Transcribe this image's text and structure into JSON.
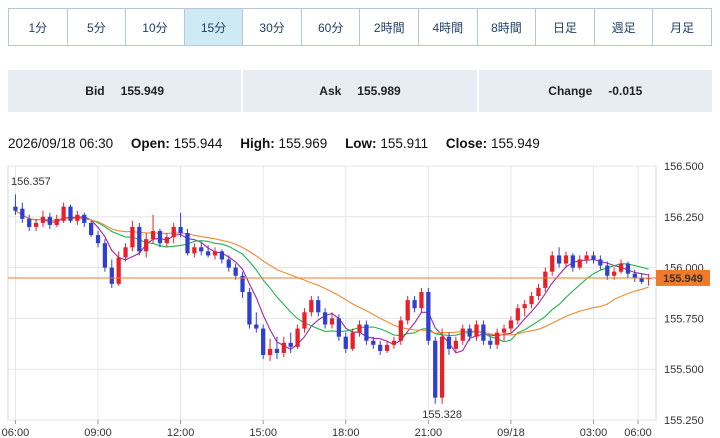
{
  "timeframes": {
    "items": [
      "1分",
      "5分",
      "10分",
      "15分",
      "30分",
      "60分",
      "2時間",
      "4時間",
      "8時間",
      "日足",
      "週足",
      "月足"
    ],
    "active_index": 3
  },
  "quote": {
    "bid_label": "Bid",
    "bid_value": "155.949",
    "ask_label": "Ask",
    "ask_value": "155.989",
    "change_label": "Change",
    "change_value": "-0.015"
  },
  "ohlc": {
    "datetime": "2026/09/18 06:30",
    "open_label": "Open:",
    "open": "155.944",
    "high_label": "High:",
    "high": "155.969",
    "low_label": "Low:",
    "low": "155.911",
    "close_label": "Close:",
    "close": "155.949"
  },
  "colors": {
    "up": "#e8202a",
    "down": "#2f3fd0",
    "ma_short": "#9b27b0",
    "ma_mid": "#22b24c",
    "ma_long": "#f08a30",
    "price_tag": "#f07a2a",
    "hi_label": "#d8355a",
    "lo_label": "#3a66b0"
  },
  "chart_data": {
    "type": "candlestick",
    "ylim": [
      155.25,
      156.5
    ],
    "yticks": [
      155.25,
      155.5,
      155.75,
      156.0,
      156.25,
      156.5
    ],
    "ytick_labels": [
      "155.250",
      "155.500",
      "155.750",
      "156.000",
      "156.250",
      "156.500"
    ],
    "xticks": [
      "06:00",
      "09:00",
      "12:00",
      "15:00",
      "18:00",
      "21:00",
      "09/18",
      "03:00",
      "06:00"
    ],
    "current_price": "155.949",
    "high_annotation": "156.357",
    "low_annotation": "155.328",
    "grid": true,
    "candles": [
      {
        "o": 156.3,
        "h": 156.36,
        "l": 156.26,
        "c": 156.28
      },
      {
        "o": 156.29,
        "h": 156.32,
        "l": 156.22,
        "c": 156.24
      },
      {
        "o": 156.24,
        "h": 156.26,
        "l": 156.18,
        "c": 156.2
      },
      {
        "o": 156.2,
        "h": 156.24,
        "l": 156.18,
        "c": 156.22
      },
      {
        "o": 156.22,
        "h": 156.28,
        "l": 156.2,
        "c": 156.25
      },
      {
        "o": 156.25,
        "h": 156.27,
        "l": 156.19,
        "c": 156.21
      },
      {
        "o": 156.21,
        "h": 156.26,
        "l": 156.2,
        "c": 156.24
      },
      {
        "o": 156.23,
        "h": 156.32,
        "l": 156.22,
        "c": 156.3
      },
      {
        "o": 156.3,
        "h": 156.31,
        "l": 156.22,
        "c": 156.23
      },
      {
        "o": 156.23,
        "h": 156.28,
        "l": 156.21,
        "c": 156.26
      },
      {
        "o": 156.26,
        "h": 156.27,
        "l": 156.2,
        "c": 156.22
      },
      {
        "o": 156.22,
        "h": 156.23,
        "l": 156.15,
        "c": 156.16
      },
      {
        "o": 156.16,
        "h": 156.18,
        "l": 156.1,
        "c": 156.12
      },
      {
        "o": 156.12,
        "h": 156.14,
        "l": 155.98,
        "c": 156.0
      },
      {
        "o": 156.0,
        "h": 156.04,
        "l": 155.9,
        "c": 155.92
      },
      {
        "o": 155.92,
        "h": 156.08,
        "l": 155.91,
        "c": 156.05
      },
      {
        "o": 156.05,
        "h": 156.12,
        "l": 156.03,
        "c": 156.1
      },
      {
        "o": 156.1,
        "h": 156.23,
        "l": 156.08,
        "c": 156.2
      },
      {
        "o": 156.2,
        "h": 156.22,
        "l": 156.06,
        "c": 156.08
      },
      {
        "o": 156.08,
        "h": 156.17,
        "l": 156.05,
        "c": 156.14
      },
      {
        "o": 156.14,
        "h": 156.26,
        "l": 156.12,
        "c": 156.18
      },
      {
        "o": 156.18,
        "h": 156.19,
        "l": 156.1,
        "c": 156.12
      },
      {
        "o": 156.12,
        "h": 156.17,
        "l": 156.1,
        "c": 156.15
      },
      {
        "o": 156.15,
        "h": 156.22,
        "l": 156.12,
        "c": 156.2
      },
      {
        "o": 156.2,
        "h": 156.27,
        "l": 156.15,
        "c": 156.17
      },
      {
        "o": 156.17,
        "h": 156.19,
        "l": 156.06,
        "c": 156.07
      },
      {
        "o": 156.07,
        "h": 156.12,
        "l": 156.05,
        "c": 156.1
      },
      {
        "o": 156.1,
        "h": 156.12,
        "l": 156.06,
        "c": 156.08
      },
      {
        "o": 156.08,
        "h": 156.11,
        "l": 156.05,
        "c": 156.06
      },
      {
        "o": 156.06,
        "h": 156.1,
        "l": 156.04,
        "c": 156.08
      },
      {
        "o": 156.08,
        "h": 156.09,
        "l": 156.02,
        "c": 156.04
      },
      {
        "o": 156.04,
        "h": 156.06,
        "l": 155.98,
        "c": 156.0
      },
      {
        "o": 156.0,
        "h": 156.02,
        "l": 155.94,
        "c": 155.96
      },
      {
        "o": 155.96,
        "h": 155.98,
        "l": 155.85,
        "c": 155.88
      },
      {
        "o": 155.88,
        "h": 155.9,
        "l": 155.7,
        "c": 155.72
      },
      {
        "o": 155.72,
        "h": 155.78,
        "l": 155.68,
        "c": 155.7
      },
      {
        "o": 155.7,
        "h": 155.72,
        "l": 155.55,
        "c": 155.57
      },
      {
        "o": 155.57,
        "h": 155.65,
        "l": 155.54,
        "c": 155.6
      },
      {
        "o": 155.6,
        "h": 155.66,
        "l": 155.55,
        "c": 155.58
      },
      {
        "o": 155.58,
        "h": 155.66,
        "l": 155.56,
        "c": 155.63
      },
      {
        "o": 155.63,
        "h": 155.68,
        "l": 155.58,
        "c": 155.61
      },
      {
        "o": 155.61,
        "h": 155.72,
        "l": 155.6,
        "c": 155.7
      },
      {
        "o": 155.7,
        "h": 155.8,
        "l": 155.68,
        "c": 155.78
      },
      {
        "o": 155.78,
        "h": 155.86,
        "l": 155.76,
        "c": 155.84
      },
      {
        "o": 155.84,
        "h": 155.86,
        "l": 155.76,
        "c": 155.78
      },
      {
        "o": 155.78,
        "h": 155.8,
        "l": 155.7,
        "c": 155.72
      },
      {
        "o": 155.72,
        "h": 155.78,
        "l": 155.7,
        "c": 155.75
      },
      {
        "o": 155.75,
        "h": 155.77,
        "l": 155.64,
        "c": 155.66
      },
      {
        "o": 155.66,
        "h": 155.68,
        "l": 155.58,
        "c": 155.6
      },
      {
        "o": 155.6,
        "h": 155.7,
        "l": 155.59,
        "c": 155.68
      },
      {
        "o": 155.68,
        "h": 155.74,
        "l": 155.66,
        "c": 155.72
      },
      {
        "o": 155.72,
        "h": 155.74,
        "l": 155.62,
        "c": 155.64
      },
      {
        "o": 155.64,
        "h": 155.66,
        "l": 155.6,
        "c": 155.62
      },
      {
        "o": 155.62,
        "h": 155.64,
        "l": 155.57,
        "c": 155.59
      },
      {
        "o": 155.59,
        "h": 155.64,
        "l": 155.58,
        "c": 155.62
      },
      {
        "o": 155.62,
        "h": 155.66,
        "l": 155.6,
        "c": 155.64
      },
      {
        "o": 155.64,
        "h": 155.76,
        "l": 155.62,
        "c": 155.74
      },
      {
        "o": 155.74,
        "h": 155.86,
        "l": 155.72,
        "c": 155.84
      },
      {
        "o": 155.84,
        "h": 155.86,
        "l": 155.78,
        "c": 155.8
      },
      {
        "o": 155.8,
        "h": 155.9,
        "l": 155.78,
        "c": 155.88
      },
      {
        "o": 155.88,
        "h": 155.9,
        "l": 155.62,
        "c": 155.64
      },
      {
        "o": 155.64,
        "h": 155.66,
        "l": 155.33,
        "c": 155.36
      },
      {
        "o": 155.36,
        "h": 155.7,
        "l": 155.33,
        "c": 155.66
      },
      {
        "o": 155.66,
        "h": 155.68,
        "l": 155.57,
        "c": 155.6
      },
      {
        "o": 155.6,
        "h": 155.66,
        "l": 155.58,
        "c": 155.64
      },
      {
        "o": 155.64,
        "h": 155.72,
        "l": 155.62,
        "c": 155.7
      },
      {
        "o": 155.7,
        "h": 155.72,
        "l": 155.64,
        "c": 155.66
      },
      {
        "o": 155.66,
        "h": 155.74,
        "l": 155.64,
        "c": 155.72
      },
      {
        "o": 155.72,
        "h": 155.74,
        "l": 155.62,
        "c": 155.64
      },
      {
        "o": 155.64,
        "h": 155.66,
        "l": 155.6,
        "c": 155.62
      },
      {
        "o": 155.62,
        "h": 155.7,
        "l": 155.6,
        "c": 155.68
      },
      {
        "o": 155.68,
        "h": 155.72,
        "l": 155.64,
        "c": 155.7
      },
      {
        "o": 155.7,
        "h": 155.76,
        "l": 155.68,
        "c": 155.74
      },
      {
        "o": 155.74,
        "h": 155.82,
        "l": 155.72,
        "c": 155.8
      },
      {
        "o": 155.8,
        "h": 155.84,
        "l": 155.76,
        "c": 155.82
      },
      {
        "o": 155.82,
        "h": 155.88,
        "l": 155.8,
        "c": 155.86
      },
      {
        "o": 155.86,
        "h": 155.92,
        "l": 155.84,
        "c": 155.9
      },
      {
        "o": 155.9,
        "h": 156.0,
        "l": 155.88,
        "c": 155.98
      },
      {
        "o": 155.98,
        "h": 156.08,
        "l": 155.96,
        "c": 156.06
      },
      {
        "o": 156.06,
        "h": 156.1,
        "l": 156.0,
        "c": 156.02
      },
      {
        "o": 156.02,
        "h": 156.08,
        "l": 156.0,
        "c": 156.06
      },
      {
        "o": 156.06,
        "h": 156.07,
        "l": 155.98,
        "c": 156.0
      },
      {
        "o": 156.0,
        "h": 156.06,
        "l": 155.99,
        "c": 156.04
      },
      {
        "o": 156.04,
        "h": 156.08,
        "l": 156.02,
        "c": 156.06
      },
      {
        "o": 156.06,
        "h": 156.08,
        "l": 156.02,
        "c": 156.04
      },
      {
        "o": 156.04,
        "h": 156.06,
        "l": 155.99,
        "c": 156.01
      },
      {
        "o": 156.01,
        "h": 156.03,
        "l": 155.94,
        "c": 155.96
      },
      {
        "o": 155.96,
        "h": 156.0,
        "l": 155.94,
        "c": 155.98
      },
      {
        "o": 155.98,
        "h": 156.04,
        "l": 155.97,
        "c": 156.02
      },
      {
        "o": 156.02,
        "h": 156.03,
        "l": 155.95,
        "c": 155.97
      },
      {
        "o": 155.97,
        "h": 155.99,
        "l": 155.93,
        "c": 155.95
      },
      {
        "o": 155.95,
        "h": 155.97,
        "l": 155.92,
        "c": 155.93
      },
      {
        "o": 155.944,
        "h": 155.969,
        "l": 155.911,
        "c": 155.949
      }
    ]
  }
}
